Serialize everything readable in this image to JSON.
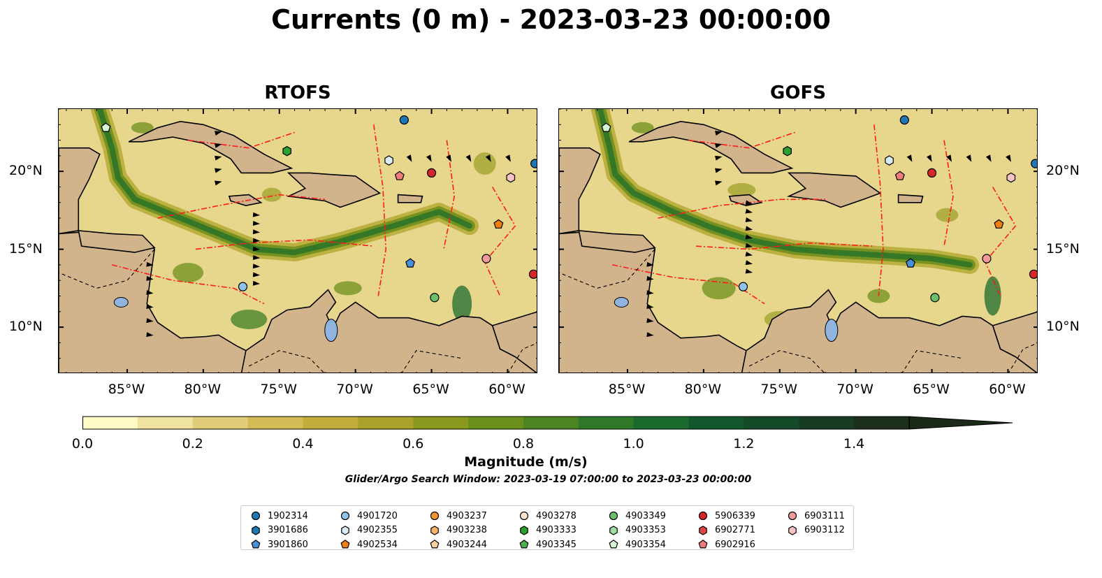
{
  "title": "Currents (0 m) - 2023-03-23 00:00:00",
  "panels": [
    {
      "title": "RTOFS",
      "variant": 0
    },
    {
      "title": "GOFS",
      "variant": 1
    }
  ],
  "lon_ticks": [
    "85°W",
    "80°W",
    "75°W",
    "70°W",
    "65°W",
    "60°W"
  ],
  "lat_ticks": [
    "20°N",
    "15°N",
    "10°N"
  ],
  "colorbar": {
    "label": "Magnitude (m/s)",
    "ticks": [
      "0.0",
      "0.2",
      "0.4",
      "0.6",
      "0.8",
      "1.0",
      "1.2",
      "1.4"
    ],
    "colors": [
      "#fefbc6",
      "#f0e2a0",
      "#e0cc79",
      "#d3bc55",
      "#c4ad3c",
      "#aaa22a",
      "#8b9a1e",
      "#6a8f1c",
      "#4c8422",
      "#2e7828",
      "#1a6a2e",
      "#12582c",
      "#154a28",
      "#183c22",
      "#1b2e1a"
    ]
  },
  "search_window": "Glider/Argo Search Window: 2023-03-19 07:00:00 to 2023-03-23 00:00:00",
  "legend": [
    {
      "id": "1902314",
      "marker": "circle",
      "color": "#1f77b4"
    },
    {
      "id": "3901686",
      "marker": "hexagon",
      "color": "#1f77b4"
    },
    {
      "id": "3901860",
      "marker": "pentagon",
      "color": "#4a90d9"
    },
    {
      "id": "4901720",
      "marker": "circle",
      "color": "#8fc3ea"
    },
    {
      "id": "4902355",
      "marker": "hexagon",
      "color": "#d8ecf8"
    },
    {
      "id": "4902534",
      "marker": "pentagon",
      "color": "#f07f0e"
    },
    {
      "id": "4903237",
      "marker": "circle",
      "color": "#f5922f"
    },
    {
      "id": "4903238",
      "marker": "hexagon",
      "color": "#f8b26b"
    },
    {
      "id": "4903244",
      "marker": "pentagon",
      "color": "#fbcfa0"
    },
    {
      "id": "4903278",
      "marker": "circle",
      "color": "#fde5cc"
    },
    {
      "id": "4903333",
      "marker": "hexagon",
      "color": "#2ca02c"
    },
    {
      "id": "4903345",
      "marker": "pentagon",
      "color": "#4cb04c"
    },
    {
      "id": "4903349",
      "marker": "circle",
      "color": "#6cc06c"
    },
    {
      "id": "4903353",
      "marker": "hexagon",
      "color": "#a1dea1"
    },
    {
      "id": "4903354",
      "marker": "pentagon",
      "color": "#d3f5d3"
    },
    {
      "id": "5906339",
      "marker": "circle",
      "color": "#d62728"
    },
    {
      "id": "6902771",
      "marker": "hexagon",
      "color": "#e04545"
    },
    {
      "id": "6902916",
      "marker": "pentagon",
      "color": "#ee7c7c"
    },
    {
      "id": "6903111",
      "marker": "circle",
      "color": "#f29a9a"
    },
    {
      "id": "6903112",
      "marker": "hexagon",
      "color": "#f8c3c3"
    }
  ],
  "floats": [
    {
      "id": "1902314",
      "lon": -66.8,
      "lat": 23.3
    },
    {
      "id": "4903354",
      "lon": -86.4,
      "lat": 22.8
    },
    {
      "id": "4903333",
      "lon": -74.5,
      "lat": 21.3
    },
    {
      "id": "4902355",
      "lon": -67.8,
      "lat": 20.7
    },
    {
      "id": "6902916",
      "lon": -67.1,
      "lat": 19.7
    },
    {
      "id": "5906339",
      "lon": -65.0,
      "lat": 19.9
    },
    {
      "id": "6903112",
      "lon": -59.8,
      "lat": 19.6
    },
    {
      "id": "1902314",
      "lon": -58.2,
      "lat": 20.5
    },
    {
      "id": "4902534",
      "lon": -60.6,
      "lat": 16.6
    },
    {
      "id": "3901860",
      "lon": -66.4,
      "lat": 14.1
    },
    {
      "id": "6903111",
      "lon": -61.4,
      "lat": 14.4
    },
    {
      "id": "5906339",
      "lon": -58.3,
      "lat": 13.4
    },
    {
      "id": "4901720",
      "lon": -77.4,
      "lat": 12.6
    },
    {
      "id": "4903349",
      "lon": -64.8,
      "lat": 11.9
    }
  ]
}
